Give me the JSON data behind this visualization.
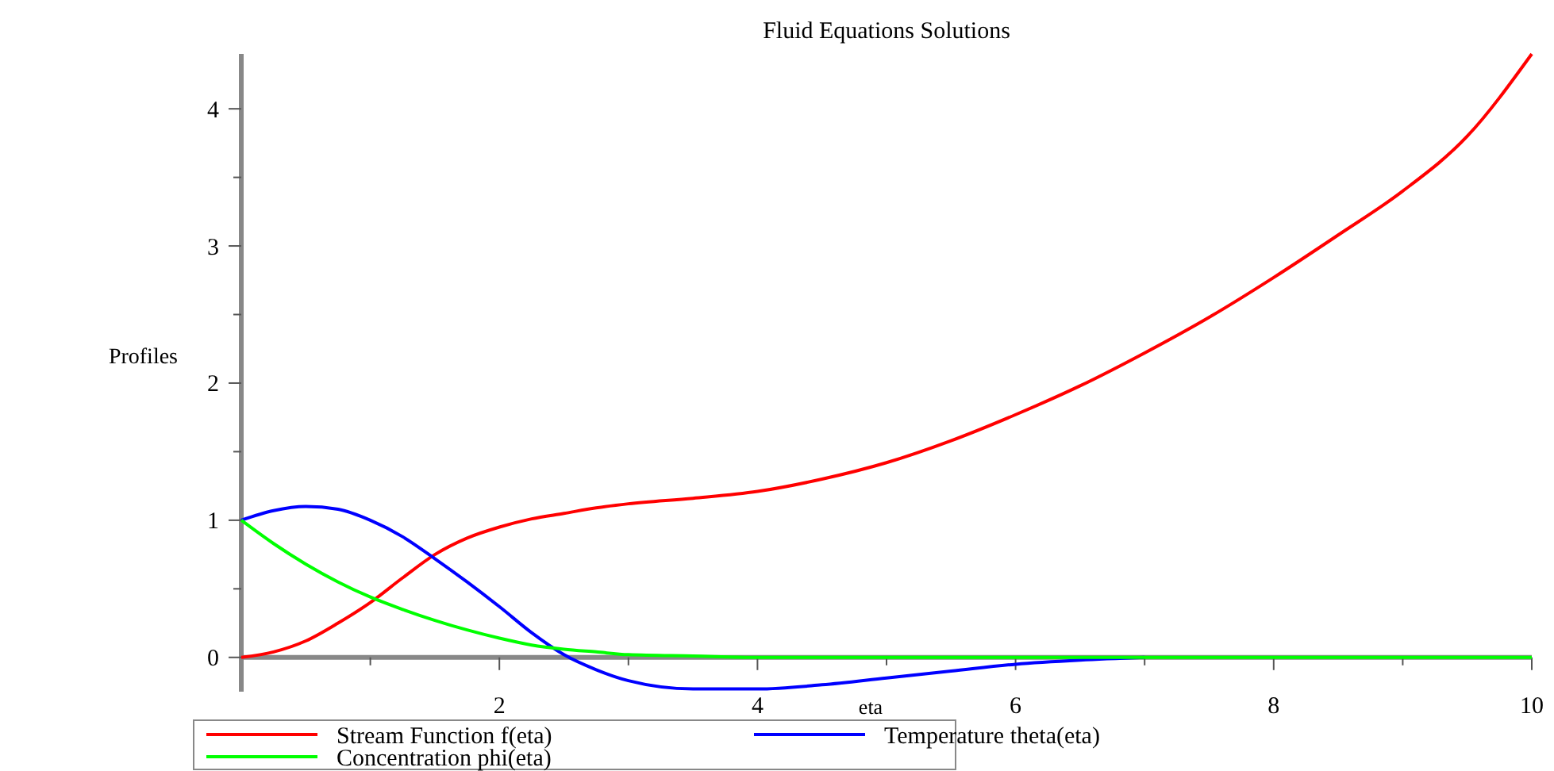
{
  "chart_data": {
    "type": "line",
    "title": "Fluid Equations Solutions",
    "xlabel": "eta",
    "ylabel": "Profiles",
    "x": [
      0,
      0.25,
      0.5,
      0.75,
      1,
      1.25,
      1.5,
      1.75,
      2,
      2.25,
      2.5,
      2.75,
      3,
      3.5,
      4,
      4.5,
      5,
      5.5,
      6,
      6.5,
      7,
      7.5,
      8,
      8.5,
      9,
      9.5,
      10
    ],
    "series": [
      {
        "name": "Stream Function f(eta)",
        "color": "#ff0000",
        "values": [
          0,
          0.04,
          0.12,
          0.25,
          0.4,
          0.58,
          0.75,
          0.87,
          0.95,
          1.01,
          1.05,
          1.09,
          1.12,
          1.16,
          1.21,
          1.3,
          1.42,
          1.58,
          1.77,
          1.98,
          2.22,
          2.48,
          2.77,
          3.08,
          3.4,
          3.8,
          4.4
        ]
      },
      {
        "name": "Temperature theta(eta)",
        "color": "#0000ff",
        "values": [
          1,
          1.07,
          1.1,
          1.08,
          1.0,
          0.88,
          0.72,
          0.55,
          0.37,
          0.18,
          0.02,
          -0.09,
          -0.17,
          -0.23,
          -0.23,
          -0.2,
          -0.15,
          -0.1,
          -0.05,
          -0.02,
          0,
          null,
          null,
          null,
          null,
          null,
          null
        ]
      },
      {
        "name": "Concentration phi(eta)",
        "color": "#00ff00",
        "values": [
          1,
          0.83,
          0.68,
          0.55,
          0.44,
          0.35,
          0.27,
          0.2,
          0.14,
          0.09,
          0.06,
          0.04,
          0.02,
          0.01,
          0,
          0,
          0,
          0,
          0,
          0,
          0,
          0,
          0,
          0,
          0,
          0,
          0
        ]
      }
    ],
    "xlim": [
      0,
      10
    ],
    "ylim": [
      -0.25,
      4.4
    ],
    "xticks": [
      {
        "value": 1,
        "label": null
      },
      2,
      {
        "value": 3,
        "label": null
      },
      4,
      {
        "value": 5,
        "label": null
      },
      6,
      {
        "value": 7,
        "label": null
      },
      8,
      {
        "value": 9,
        "label": null
      },
      10
    ],
    "yticks": [
      0,
      {
        "value": 0.5,
        "label": null
      },
      1,
      {
        "value": 1.5,
        "label": null
      },
      2,
      {
        "value": 2.5,
        "label": null
      },
      3,
      {
        "value": 3.5,
        "label": null
      },
      4
    ],
    "legend": "bottom",
    "grid": false,
    "marker": "none",
    "line_style": "solid"
  }
}
